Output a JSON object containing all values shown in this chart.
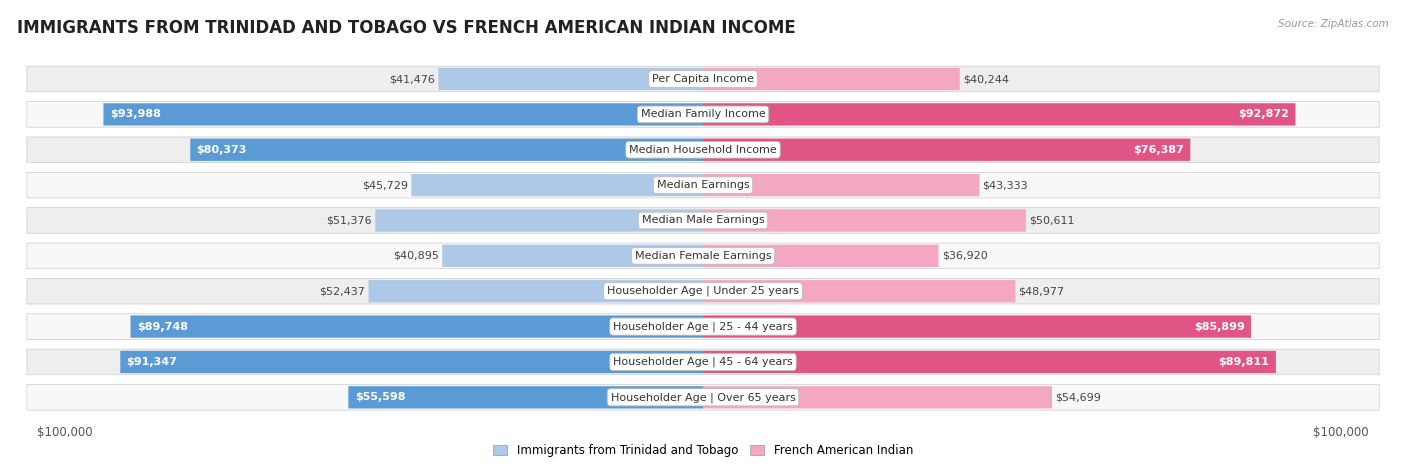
{
  "title": "IMMIGRANTS FROM TRINIDAD AND TOBAGO VS FRENCH AMERICAN INDIAN INCOME",
  "source": "Source: ZipAtlas.com",
  "categories": [
    "Per Capita Income",
    "Median Family Income",
    "Median Household Income",
    "Median Earnings",
    "Median Male Earnings",
    "Median Female Earnings",
    "Householder Age | Under 25 years",
    "Householder Age | 25 - 44 years",
    "Householder Age | 45 - 64 years",
    "Householder Age | Over 65 years"
  ],
  "left_values": [
    41476,
    93988,
    80373,
    45729,
    51376,
    40895,
    52437,
    89748,
    91347,
    55598
  ],
  "right_values": [
    40244,
    92872,
    76387,
    43333,
    50611,
    36920,
    48977,
    85899,
    89811,
    54699
  ],
  "left_labels": [
    "$41,476",
    "$93,988",
    "$80,373",
    "$45,729",
    "$51,376",
    "$40,895",
    "$52,437",
    "$89,748",
    "$91,347",
    "$55,598"
  ],
  "right_labels": [
    "$40,244",
    "$92,872",
    "$76,387",
    "$43,333",
    "$50,611",
    "$36,920",
    "$48,977",
    "$85,899",
    "$89,811",
    "$54,699"
  ],
  "max_value": 100000,
  "left_color_light": "#aec9e8",
  "left_color_dark": "#5b9bd5",
  "right_color_light": "#f4a7c3",
  "right_color_dark": "#e05585",
  "left_legend": "Immigrants from Trinidad and Tobago",
  "right_legend": "French American Indian",
  "bg_row_odd": "#eeeeee",
  "bg_row_even": "#f8f8f8",
  "label_color_outside": "#555555",
  "label_color_inside": "#ffffff",
  "title_fontsize": 12,
  "label_fontsize": 8,
  "category_fontsize": 8,
  "inside_threshold": 55000
}
